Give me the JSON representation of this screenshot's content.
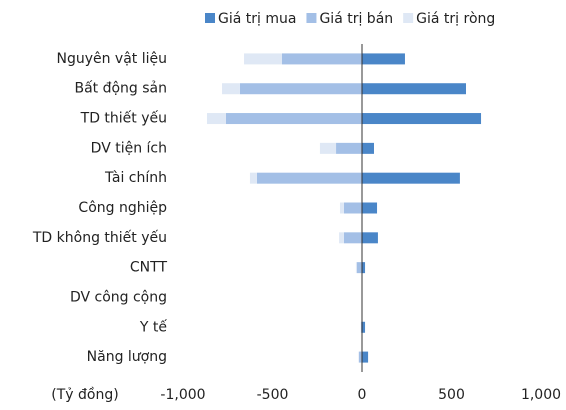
{
  "chart_data": {
    "type": "bar",
    "orientation": "horizontal",
    "stacked": true,
    "x_label": "(Tỷ đồng)",
    "categories": [
      "Nguyên vật liệu",
      "Bất động sản",
      "TD thiết yếu",
      "DV tiện ích",
      "Tài chính",
      "Công nghiệp",
      "TD không thiết yếu",
      "CNTT",
      "DV công cộng",
      "Y tế",
      "Năng lượng"
    ],
    "series": [
      {
        "name": "Giá trị mua",
        "color": "#4a86c8",
        "values": [
          240,
          581,
          665,
          67,
          547,
          84,
          89,
          17,
          0,
          17,
          34
        ]
      },
      {
        "name": "Giá trị bán",
        "color": "#a3bfe6",
        "values": [
          -447,
          -682,
          -760,
          -145,
          -587,
          -101,
          -101,
          -28,
          0,
          -6,
          -17
        ]
      },
      {
        "name": "Giá trị ròng",
        "color": "#dfe8f5",
        "values": [
          -212,
          -100,
          -106,
          -90,
          -39,
          -22,
          -27,
          -6,
          0,
          0,
          -3
        ]
      }
    ],
    "xlim": [
      -1000,
      1000
    ],
    "xticks": [
      {
        "value": -1000,
        "label": "-1,000"
      },
      -500,
      0,
      500,
      {
        "value": 1000,
        "label": "1,000"
      }
    ],
    "legend": "top"
  }
}
